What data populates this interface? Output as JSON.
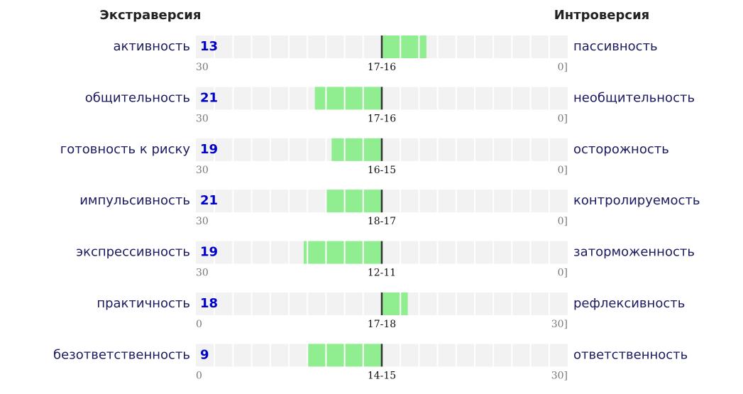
{
  "chart_data": {
    "type": "bipolar-scales",
    "left_title": "Экстраверсия",
    "right_title": "Интроверсия",
    "track_range": [
      -10,
      10
    ],
    "track_cells": 20,
    "bar_color": "#90ee90",
    "track_color": "#f2f2f2",
    "rows": [
      {
        "left": "активность",
        "score": 13,
        "right": "пассивность",
        "left_end": "30",
        "center": "17-16",
        "right_end": "0]",
        "bar": 2.4
      },
      {
        "left": "общительность",
        "score": 21,
        "right": "необщительность",
        "left_end": "30",
        "center": "17-16",
        "right_end": "0]",
        "bar": -3.6
      },
      {
        "left": "готовность к риску",
        "score": 19,
        "right": "осторожность",
        "left_end": "30",
        "center": "16-15",
        "right_end": "0]",
        "bar": -2.7
      },
      {
        "left": "импульсивность",
        "score": 21,
        "right": "контролируемость",
        "left_end": "30",
        "center": "18-17",
        "right_end": "0]",
        "bar": -3.0
      },
      {
        "left": "экспрессивность",
        "score": 19,
        "right": "заторможенность",
        "left_end": "30",
        "center": "12-11",
        "right_end": "0]",
        "bar": -4.2
      },
      {
        "left": "практичность",
        "score": 18,
        "right": "рефлексивность",
        "left_end": "0",
        "center": "17-18",
        "right_end": "30]",
        "bar": 1.4
      },
      {
        "left": "безответственность",
        "score": 9,
        "right": "ответственность",
        "left_end": "0",
        "center": "14-15",
        "right_end": "30]",
        "bar": -4.0
      }
    ]
  }
}
